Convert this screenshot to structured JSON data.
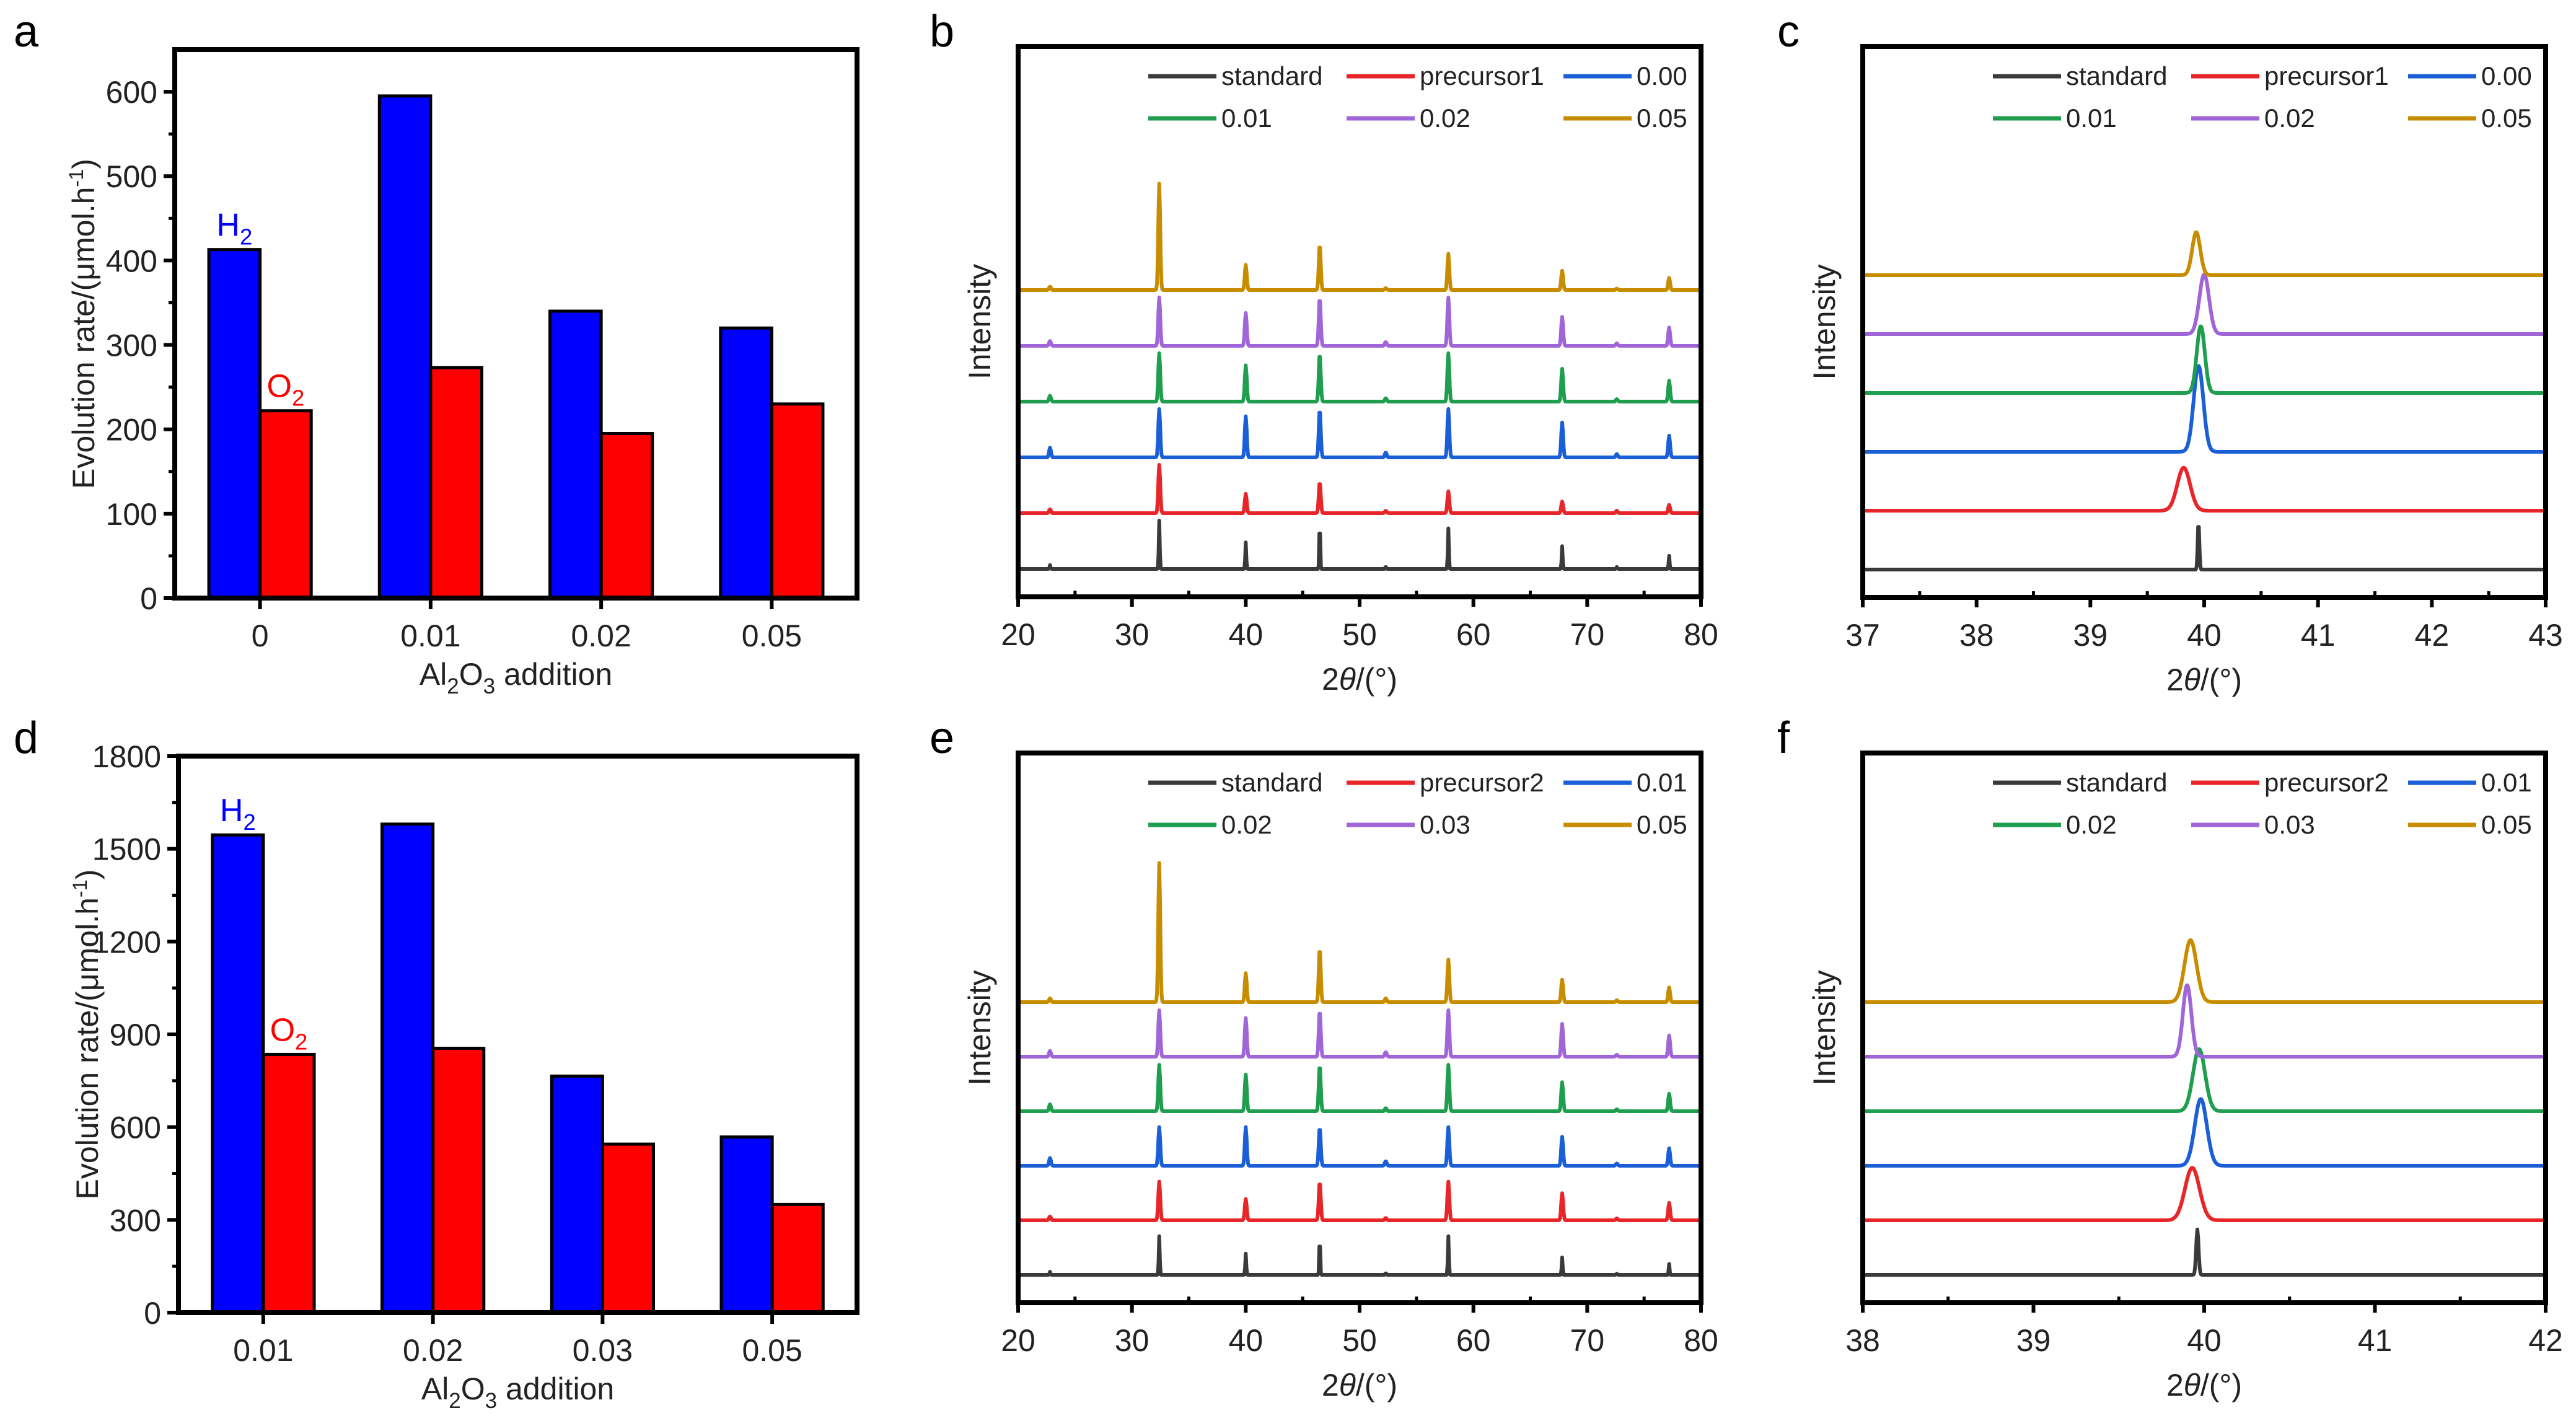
{
  "figure": {
    "panel_labels": [
      "a",
      "b",
      "c",
      "d",
      "e",
      "f"
    ]
  },
  "chart_data": [
    {
      "id": "a",
      "type": "bar",
      "title": "",
      "xlabel": "Al2O3 addition",
      "ylabel": "Evolution rate/(μmol.h-1)",
      "categories": [
        "0",
        "0.01",
        "0.02",
        "0.05"
      ],
      "ylim": [
        0,
        650
      ],
      "yticks": [
        0,
        100,
        200,
        300,
        400,
        500,
        600
      ],
      "series": [
        {
          "name": "H2",
          "color": "#0000ff",
          "values": [
            413,
            595,
            340,
            320
          ]
        },
        {
          "name": "O2",
          "color": "#ff0000",
          "values": [
            222,
            273,
            195,
            230
          ]
        }
      ],
      "annotations": [
        {
          "text": "H2",
          "color": "#0000ff",
          "near": "first H2 bar"
        },
        {
          "text": "O2",
          "color": "#ff0000",
          "near": "first O2 bar"
        }
      ],
      "grid": false,
      "legend": "none"
    },
    {
      "id": "b",
      "type": "line",
      "title": "",
      "xlabel": "2θ/(°)",
      "ylabel": "Intensity",
      "xlim": [
        20,
        80
      ],
      "xticks": [
        20,
        30,
        40,
        50,
        60,
        70,
        80
      ],
      "yticks": [],
      "legend_position": "top-right",
      "peak_positions": [
        22.8,
        32.4,
        40.0,
        46.5,
        52.3,
        57.8,
        67.8,
        72.6,
        77.2
      ],
      "series": [
        {
          "name": "standard",
          "color": "#3a3a3a",
          "offset": 0,
          "peak_heights": [
            0.08,
            1.0,
            0.55,
            1.0,
            0.05,
            0.84,
            0.47,
            0.04,
            0.27
          ]
        },
        {
          "name": "precursor1",
          "color": "#e8262a",
          "offset": 1,
          "peak_heights": [
            0.08,
            1.0,
            0.4,
            0.65,
            0.05,
            0.45,
            0.24,
            0.05,
            0.17
          ]
        },
        {
          "name": "0.00",
          "color": "#1a5fd8",
          "offset": 2,
          "peak_heights": [
            0.2,
            1.0,
            0.85,
            1.0,
            0.1,
            1.0,
            0.72,
            0.07,
            0.45
          ]
        },
        {
          "name": "0.01",
          "color": "#1e9e4e",
          "offset": 3,
          "peak_heights": [
            0.12,
            1.0,
            0.75,
            1.0,
            0.07,
            1.0,
            0.68,
            0.05,
            0.43
          ]
        },
        {
          "name": "0.02",
          "color": "#a066d8",
          "offset": 4,
          "peak_heights": [
            0.1,
            1.0,
            0.68,
            1.0,
            0.08,
            1.0,
            0.6,
            0.05,
            0.38
          ]
        },
        {
          "name": "0.05",
          "color": "#c88c00",
          "offset": 5,
          "peak_heights": [
            0.07,
            2.2,
            0.52,
            0.95,
            0.04,
            0.75,
            0.4,
            0.03,
            0.25
          ]
        }
      ]
    },
    {
      "id": "c",
      "type": "line",
      "title": "",
      "xlabel": "2θ/(°)",
      "ylabel": "Intensity",
      "xlim": [
        37,
        43
      ],
      "xticks": [
        37,
        38,
        39,
        40,
        41,
        42,
        43
      ],
      "yticks": [],
      "legend_position": "top-right",
      "series": [
        {
          "name": "standard",
          "color": "#3a3a3a",
          "offset": 0,
          "peak_center": 39.95,
          "peak_height": 1.0,
          "width": 0.01
        },
        {
          "name": "precursor1",
          "color": "#e8262a",
          "offset": 1,
          "peak_center": 39.82,
          "peak_height": 0.9,
          "width": 0.08
        },
        {
          "name": "0.00",
          "color": "#1a5fd8",
          "offset": 2,
          "peak_center": 39.95,
          "peak_height": 1.8,
          "width": 0.06
        },
        {
          "name": "0.01",
          "color": "#1e9e4e",
          "offset": 3,
          "peak_center": 39.97,
          "peak_height": 1.4,
          "width": 0.05
        },
        {
          "name": "0.02",
          "color": "#a066d8",
          "offset": 4,
          "peak_center": 40.0,
          "peak_height": 1.25,
          "width": 0.06
        },
        {
          "name": "0.05",
          "color": "#c88c00",
          "offset": 5,
          "peak_center": 39.93,
          "peak_height": 0.9,
          "width": 0.05
        }
      ]
    },
    {
      "id": "d",
      "type": "bar",
      "title": "",
      "xlabel": "Al2O3 addition",
      "ylabel": "Evolution rate/(μmol.h-1)",
      "categories": [
        "0.01",
        "0.02",
        "0.03",
        "0.05"
      ],
      "ylim": [
        0,
        1800
      ],
      "yticks": [
        0,
        300,
        600,
        900,
        1200,
        1500,
        1800
      ],
      "series": [
        {
          "name": "H2",
          "color": "#0000ff",
          "values": [
            1545,
            1580,
            765,
            568
          ]
        },
        {
          "name": "O2",
          "color": "#ff0000",
          "values": [
            835,
            855,
            545,
            350
          ]
        }
      ],
      "annotations": [
        {
          "text": "H2",
          "color": "#0000ff",
          "near": "first H2 bar"
        },
        {
          "text": "O2",
          "color": "#ff0000",
          "near": "first O2 bar"
        }
      ],
      "grid": false,
      "legend": "none"
    },
    {
      "id": "e",
      "type": "line",
      "title": "",
      "xlabel": "2θ/(°)",
      "ylabel": "Intensity",
      "xlim": [
        20,
        80
      ],
      "xticks": [
        20,
        30,
        40,
        50,
        60,
        70,
        80
      ],
      "yticks": [],
      "legend_position": "top-right",
      "peak_positions": [
        22.8,
        32.4,
        40.0,
        46.5,
        52.3,
        57.8,
        67.8,
        72.6,
        77.2
      ],
      "series": [
        {
          "name": "standard",
          "color": "#3a3a3a",
          "offset": 0,
          "peak_heights": [
            0.08,
            1.0,
            0.55,
            1.0,
            0.05,
            1.0,
            0.45,
            0.03,
            0.28
          ]
        },
        {
          "name": "precursor2",
          "color": "#e8262a",
          "offset": 1,
          "peak_heights": [
            0.1,
            1.0,
            0.55,
            1.0,
            0.06,
            1.0,
            0.7,
            0.05,
            0.45
          ]
        },
        {
          "name": "0.01",
          "color": "#1a5fd8",
          "offset": 2,
          "peak_heights": [
            0.2,
            1.0,
            1.0,
            1.0,
            0.12,
            1.0,
            0.75,
            0.06,
            0.45
          ]
        },
        {
          "name": "0.02",
          "color": "#1e9e4e",
          "offset": 3,
          "peak_heights": [
            0.18,
            1.2,
            0.95,
            1.2,
            0.08,
            1.2,
            0.75,
            0.05,
            0.45
          ]
        },
        {
          "name": "0.03",
          "color": "#a066d8",
          "offset": 4,
          "peak_heights": [
            0.15,
            1.2,
            1.0,
            1.2,
            0.12,
            1.2,
            0.85,
            0.05,
            0.55
          ]
        },
        {
          "name": "0.05",
          "color": "#c88c00",
          "offset": 5,
          "peak_heights": [
            0.1,
            3.6,
            0.75,
            1.4,
            0.1,
            1.1,
            0.58,
            0.05,
            0.38
          ]
        }
      ]
    },
    {
      "id": "f",
      "type": "line",
      "title": "",
      "xlabel": "2θ/(°)",
      "ylabel": "Intensity",
      "xlim": [
        38,
        42
      ],
      "xticks": [
        38,
        39,
        40,
        41,
        42
      ],
      "yticks": [],
      "legend_position": "top-right",
      "series": [
        {
          "name": "standard",
          "color": "#3a3a3a",
          "offset": 0,
          "peak_center": 39.96,
          "peak_height": 0.95,
          "width": 0.01
        },
        {
          "name": "precursor2",
          "color": "#e8262a",
          "offset": 1,
          "peak_center": 39.93,
          "peak_height": 1.1,
          "width": 0.06
        },
        {
          "name": "0.01",
          "color": "#1a5fd8",
          "offset": 2,
          "peak_center": 39.98,
          "peak_height": 1.4,
          "width": 0.05
        },
        {
          "name": "0.02",
          "color": "#1e9e4e",
          "offset": 3,
          "peak_center": 39.97,
          "peak_height": 1.3,
          "width": 0.05
        },
        {
          "name": "0.03",
          "color": "#a066d8",
          "offset": 4,
          "peak_center": 39.9,
          "peak_height": 1.5,
          "width": 0.035
        },
        {
          "name": "0.05",
          "color": "#c88c00",
          "offset": 5,
          "peak_center": 39.92,
          "peak_height": 1.3,
          "width": 0.05
        }
      ]
    }
  ]
}
